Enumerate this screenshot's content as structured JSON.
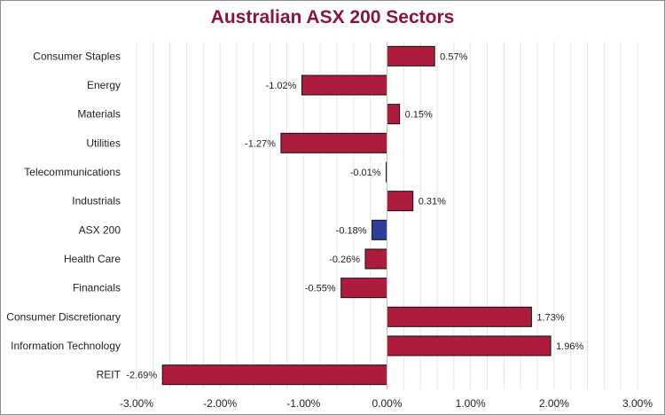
{
  "chart_data": {
    "type": "bar",
    "orientation": "horizontal",
    "title": "Australian ASX 200 Sectors",
    "xlabel": "",
    "ylabel": "",
    "xlim": [
      -3.0,
      3.0
    ],
    "x_ticks": [
      "-3.00%",
      "-2.00%",
      "-1.00%",
      "0.00%",
      "1.00%",
      "2.00%",
      "3.00%"
    ],
    "x_tick_values": [
      -3,
      -2,
      -1,
      0,
      1,
      2,
      3
    ],
    "grid": true,
    "categories": [
      "Consumer Staples",
      "Energy",
      "Materials",
      "Utilities",
      "Telecommunications",
      "Industrials",
      "ASX 200",
      "Health Care",
      "Financials",
      "Consumer Discretionary",
      "Information Technology",
      "REIT"
    ],
    "values": [
      0.57,
      -1.02,
      0.15,
      -1.27,
      -0.01,
      0.31,
      -0.18,
      -0.26,
      -0.55,
      1.73,
      1.96,
      -2.69
    ],
    "value_labels": [
      "0.57%",
      "-1.02%",
      "0.15%",
      "-1.27%",
      "-0.01%",
      "0.31%",
      "-0.18%",
      "-0.26%",
      "-0.55%",
      "1.73%",
      "1.96%",
      "-2.69%"
    ],
    "highlight_category": "ASX 200",
    "colors": {
      "bar": "#ad1c3c",
      "highlight_bar": "#2e3d9a",
      "bar_border": "#111111",
      "title": "#8b1538",
      "grid": "#e6e6e6"
    }
  }
}
